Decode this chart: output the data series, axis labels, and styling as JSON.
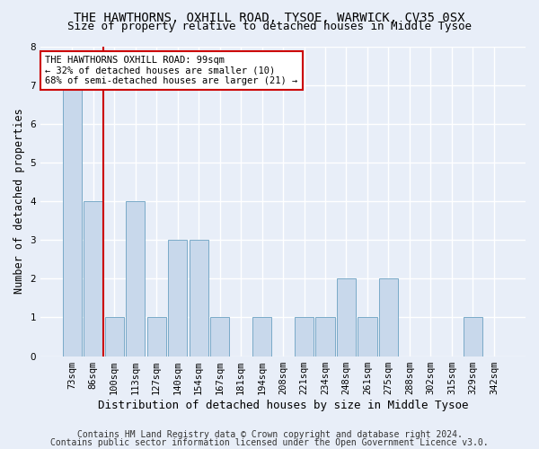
{
  "title": "THE HAWTHORNS, OXHILL ROAD, TYSOE, WARWICK, CV35 0SX",
  "subtitle": "Size of property relative to detached houses in Middle Tysoe",
  "xlabel": "Distribution of detached houses by size in Middle Tysoe",
  "ylabel": "Number of detached properties",
  "categories": [
    "73sqm",
    "86sqm",
    "100sqm",
    "113sqm",
    "127sqm",
    "140sqm",
    "154sqm",
    "167sqm",
    "181sqm",
    "194sqm",
    "208sqm",
    "221sqm",
    "234sqm",
    "248sqm",
    "261sqm",
    "275sqm",
    "288sqm",
    "302sqm",
    "315sqm",
    "329sqm",
    "342sqm"
  ],
  "values": [
    7,
    4,
    1,
    4,
    1,
    3,
    3,
    1,
    0,
    1,
    0,
    1,
    1,
    2,
    1,
    2,
    0,
    0,
    0,
    1,
    0
  ],
  "bar_color": "#c8d8eb",
  "bar_edge_color": "#7aaac8",
  "subject_line_color": "#cc0000",
  "subject_bar_index": 2,
  "annotation_text": "THE HAWTHORNS OXHILL ROAD: 99sqm\n← 32% of detached houses are smaller (10)\n68% of semi-detached houses are larger (21) →",
  "annotation_box_facecolor": "#ffffff",
  "annotation_box_edgecolor": "#cc0000",
  "ylim": [
    0,
    8
  ],
  "yticks": [
    0,
    1,
    2,
    3,
    4,
    5,
    6,
    7,
    8
  ],
  "background_color": "#e8eef8",
  "plot_background_color": "#e8eef8",
  "grid_color": "#ffffff",
  "title_fontsize": 10,
  "subtitle_fontsize": 9,
  "xlabel_fontsize": 9,
  "ylabel_fontsize": 8.5,
  "tick_fontsize": 7.5,
  "annotation_fontsize": 7.5,
  "footer_fontsize": 7,
  "footer_line1": "Contains HM Land Registry data © Crown copyright and database right 2024.",
  "footer_line2": "Contains public sector information licensed under the Open Government Licence v3.0."
}
